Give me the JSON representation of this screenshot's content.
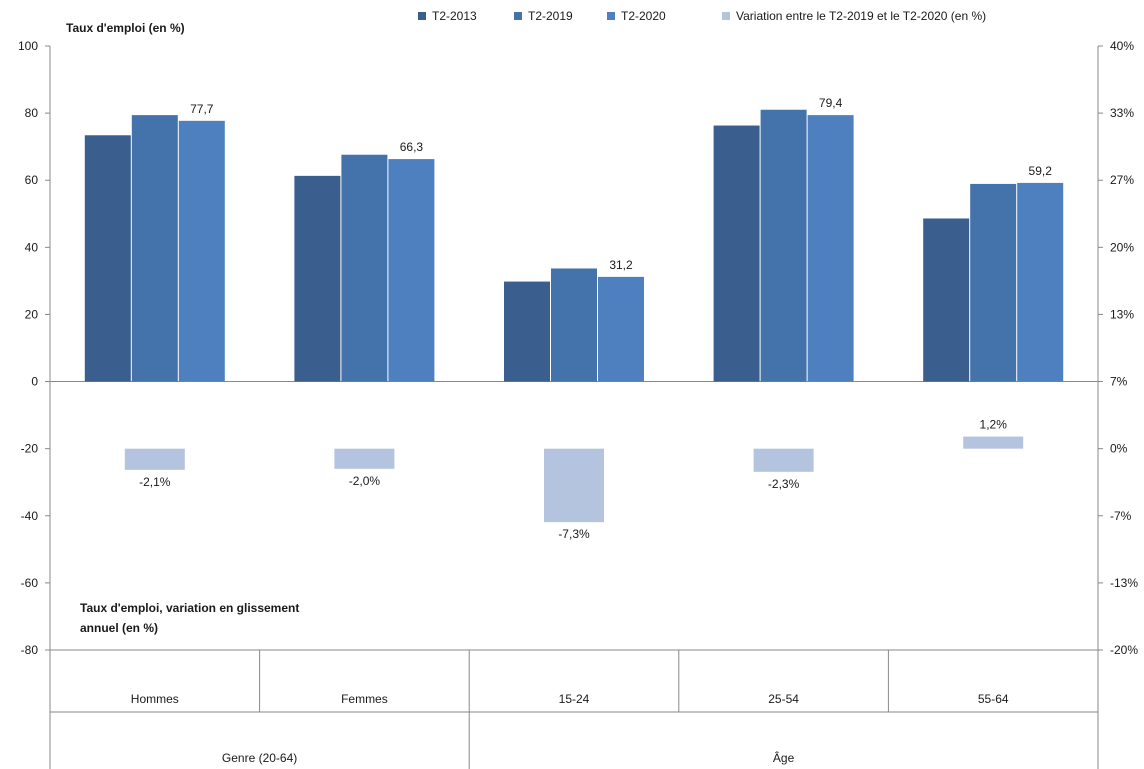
{
  "chart_data": {
    "type": "bar",
    "title_left_axis": "Taux d'emploi (en %)",
    "title_right_axis_note": "Taux d'emploi, variation en glissement annuel (en %)",
    "categories": [
      "Hommes",
      "Femmes",
      "15-24",
      "25-54",
      "55-64"
    ],
    "groups": [
      {
        "label": "Genre (20-64)",
        "categories": [
          "Hommes",
          "Femmes"
        ]
      },
      {
        "label": "Âge",
        "categories": [
          "15-24",
          "25-54",
          "55-64"
        ]
      }
    ],
    "series": [
      {
        "name": "T2-2013",
        "values": [
          73.4,
          61.3,
          29.8,
          76.3,
          48.6
        ],
        "color": "#3a5f8f"
      },
      {
        "name": "T2-2019",
        "values": [
          79.4,
          67.6,
          33.7,
          81.0,
          58.9
        ],
        "color": "#4472aa"
      },
      {
        "name": "T2-2020",
        "values": [
          77.7,
          66.3,
          31.2,
          79.4,
          59.2
        ],
        "color": "#4e80c0"
      }
    ],
    "variation_series": {
      "name": "Variation entre le T2-2019 et le T2-2020 (en %)",
      "values": [
        -2.1,
        -2.0,
        -7.3,
        -2.3,
        1.2
      ],
      "labels": [
        "-2,1%",
        "-2,0%",
        "-7,3%",
        "-2,3%",
        "1,2%"
      ],
      "color": "#b4c3de"
    },
    "data_labels": [
      "77,7",
      "66,3",
      "31,2",
      "79,4",
      "59,2"
    ],
    "left_axis": {
      "ylim": [
        -80,
        100
      ],
      "ticks": [
        "100",
        "80",
        "60",
        "40",
        "20",
        "0",
        "-20",
        "-40",
        "-60",
        "-80"
      ]
    },
    "right_axis": {
      "ylim": [
        -20,
        40
      ],
      "ticks": [
        "40%",
        "33%",
        "27%",
        "20%",
        "13%",
        "7%",
        "0%",
        "-7%",
        "-13%",
        "-20%"
      ]
    },
    "legend": {
      "placement": "top",
      "entries": [
        "T2-2013",
        "T2-2019",
        "T2-2020",
        "Variation entre le T2-2019 et le T2-2020 (en %)"
      ]
    },
    "grid": false
  }
}
